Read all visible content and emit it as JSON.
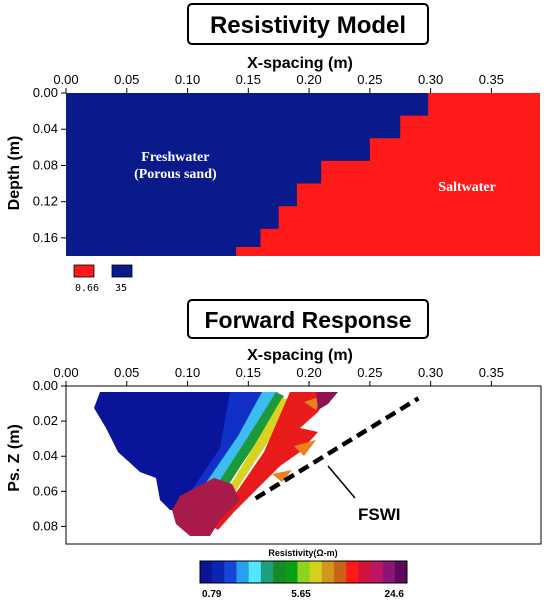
{
  "chart_data": [
    {
      "type": "heatmap",
      "title": "Resistivity Model",
      "xlabel": "X-spacing (m)",
      "ylabel": "Depth (m)",
      "xlim": [
        0.0,
        0.39
      ],
      "ylim": [
        0.0,
        0.18
      ],
      "x_ticks": [
        "0.00",
        "0.05",
        "0.10",
        "0.15",
        "0.20",
        "0.25",
        "0.30",
        "0.35"
      ],
      "y_ticks": [
        "0.00",
        "0.04",
        "0.08",
        "0.12",
        "0.16"
      ],
      "regions": [
        {
          "name": "freshwater",
          "value": 35,
          "color": "#0a1a8a"
        },
        {
          "name": "saltwater",
          "value": 0.66,
          "color": "#ff1a1a"
        }
      ],
      "boundary_steps": [
        {
          "depth_from": 0.0,
          "depth_to": 0.025,
          "x": 0.298
        },
        {
          "depth_from": 0.025,
          "depth_to": 0.05,
          "x": 0.275
        },
        {
          "depth_from": 0.05,
          "depth_to": 0.075,
          "x": 0.25
        },
        {
          "depth_from": 0.075,
          "depth_to": 0.1,
          "x": 0.21
        },
        {
          "depth_from": 0.1,
          "depth_to": 0.125,
          "x": 0.19
        },
        {
          "depth_from": 0.125,
          "depth_to": 0.15,
          "x": 0.175
        },
        {
          "depth_from": 0.15,
          "depth_to": 0.17,
          "x": 0.16
        },
        {
          "depth_from": 0.17,
          "depth_to": 0.18,
          "x": 0.14
        }
      ],
      "annotations": [
        {
          "text": "Freshwater",
          "x": 0.09,
          "y": 0.075
        },
        {
          "text": "(Porous sand)",
          "x": 0.09,
          "y": 0.094
        },
        {
          "text": "Saltwater",
          "x": 0.33,
          "y": 0.108
        }
      ],
      "legend": [
        {
          "label": "0.66",
          "color": "#ff1a1a"
        },
        {
          "label": "35",
          "color": "#0a1a8a"
        }
      ]
    },
    {
      "type": "heatmap",
      "title": "Forward Response",
      "xlabel": "X-spacing (m)",
      "ylabel": "Ps. Z (m)",
      "xlim": [
        0.0,
        0.39
      ],
      "ylim": [
        0.0,
        0.09
      ],
      "x_ticks": [
        "0.00",
        "0.05",
        "0.10",
        "0.15",
        "0.20",
        "0.25",
        "0.30",
        "0.35"
      ],
      "y_ticks": [
        "0.00",
        "0.02",
        "0.04",
        "0.06",
        "0.08"
      ],
      "annotation": "FSWI",
      "interface_line": [
        [
          0.156,
          0.064
        ],
        [
          0.29,
          0.007
        ]
      ],
      "colorbar": {
        "label": "Resistivity(Ω-m)",
        "ticks": [
          "0.79",
          "5.65",
          "24.6"
        ],
        "colors": [
          "#0b1496",
          "#0a24b4",
          "#1646d8",
          "#28a0f0",
          "#52e6ff",
          "#1ea07c",
          "#148c2a",
          "#0aa014",
          "#8cd21e",
          "#d2d21e",
          "#d2961e",
          "#c86414",
          "#ff1a1a",
          "#d2143c",
          "#be1464",
          "#8c1478",
          "#5a0a5a"
        ]
      }
    }
  ]
}
